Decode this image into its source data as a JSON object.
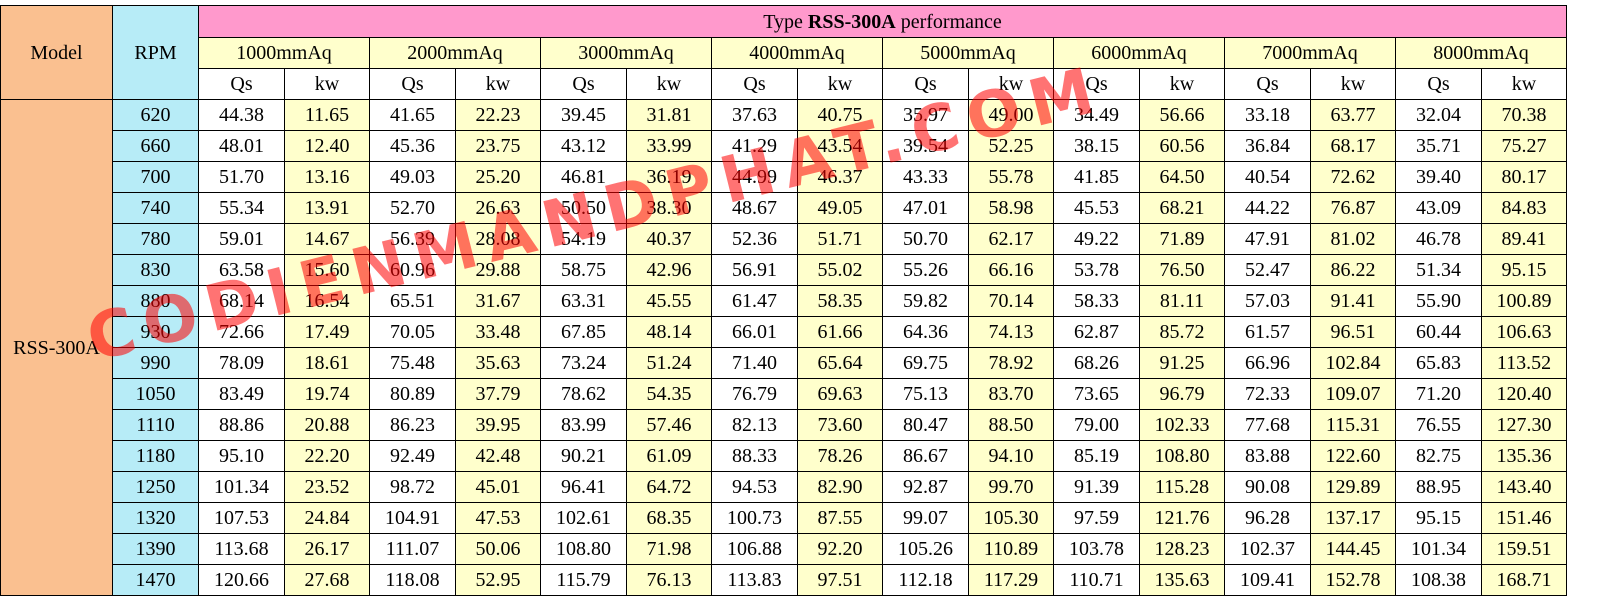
{
  "table": {
    "title_prefix": "Type ",
    "title_bold": "RSS-300A",
    "title_suffix": " performance",
    "model_header": "Model",
    "rpm_header": "RPM",
    "model_value": "RSS-300A",
    "pressures": [
      "1000mmAq",
      "2000mmAq",
      "3000mmAq",
      "4000mmAq",
      "5000mmAq",
      "6000mmAq",
      "7000mmAq",
      "8000mmAq"
    ],
    "sub_headers": [
      "Qs",
      "kw"
    ],
    "rows": [
      {
        "rpm": "620",
        "cells": [
          "44.38",
          "11.65",
          "41.65",
          "22.23",
          "39.45",
          "31.81",
          "37.63",
          "40.75",
          "35.97",
          "49.00",
          "34.49",
          "56.66",
          "33.18",
          "63.77",
          "32.04",
          "70.38"
        ]
      },
      {
        "rpm": "660",
        "cells": [
          "48.01",
          "12.40",
          "45.36",
          "23.75",
          "43.12",
          "33.99",
          "41.29",
          "43.54",
          "39.54",
          "52.25",
          "38.15",
          "60.56",
          "36.84",
          "68.17",
          "35.71",
          "75.27"
        ]
      },
      {
        "rpm": "700",
        "cells": [
          "51.70",
          "13.16",
          "49.03",
          "25.20",
          "46.81",
          "36.19",
          "44.99",
          "46.37",
          "43.33",
          "55.78",
          "41.85",
          "64.50",
          "40.54",
          "72.62",
          "39.40",
          "80.17"
        ]
      },
      {
        "rpm": "740",
        "cells": [
          "55.34",
          "13.91",
          "52.70",
          "26.63",
          "50.50",
          "38.30",
          "48.67",
          "49.05",
          "47.01",
          "58.98",
          "45.53",
          "68.21",
          "44.22",
          "76.87",
          "43.09",
          "84.83"
        ]
      },
      {
        "rpm": "780",
        "cells": [
          "59.01",
          "14.67",
          "56.39",
          "28.08",
          "54.19",
          "40.37",
          "52.36",
          "51.71",
          "50.70",
          "62.17",
          "49.22",
          "71.89",
          "47.91",
          "81.02",
          "46.78",
          "89.41"
        ]
      },
      {
        "rpm": "830",
        "cells": [
          "63.58",
          "15.60",
          "60.96",
          "29.88",
          "58.75",
          "42.96",
          "56.91",
          "55.02",
          "55.26",
          "66.16",
          "53.78",
          "76.50",
          "52.47",
          "86.22",
          "51.34",
          "95.15"
        ]
      },
      {
        "rpm": "880",
        "cells": [
          "68.14",
          "16.54",
          "65.51",
          "31.67",
          "63.31",
          "45.55",
          "61.47",
          "58.35",
          "59.82",
          "70.14",
          "58.33",
          "81.11",
          "57.03",
          "91.41",
          "55.90",
          "100.89"
        ]
      },
      {
        "rpm": "930",
        "cells": [
          "72.66",
          "17.49",
          "70.05",
          "33.48",
          "67.85",
          "48.14",
          "66.01",
          "61.66",
          "64.36",
          "74.13",
          "62.87",
          "85.72",
          "61.57",
          "96.51",
          "60.44",
          "106.63"
        ]
      },
      {
        "rpm": "990",
        "cells": [
          "78.09",
          "18.61",
          "75.48",
          "35.63",
          "73.24",
          "51.24",
          "71.40",
          "65.64",
          "69.75",
          "78.92",
          "68.26",
          "91.25",
          "66.96",
          "102.84",
          "65.83",
          "113.52"
        ]
      },
      {
        "rpm": "1050",
        "cells": [
          "83.49",
          "19.74",
          "80.89",
          "37.79",
          "78.62",
          "54.35",
          "76.79",
          "69.63",
          "75.13",
          "83.70",
          "73.65",
          "96.79",
          "72.33",
          "109.07",
          "71.20",
          "120.40"
        ]
      },
      {
        "rpm": "1110",
        "cells": [
          "88.86",
          "20.88",
          "86.23",
          "39.95",
          "83.99",
          "57.46",
          "82.13",
          "73.60",
          "80.47",
          "88.50",
          "79.00",
          "102.33",
          "77.68",
          "115.31",
          "76.55",
          "127.30"
        ]
      },
      {
        "rpm": "1180",
        "cells": [
          "95.10",
          "22.20",
          "92.49",
          "42.48",
          "90.21",
          "61.09",
          "88.33",
          "78.26",
          "86.67",
          "94.10",
          "85.19",
          "108.80",
          "83.88",
          "122.60",
          "82.75",
          "135.36"
        ]
      },
      {
        "rpm": "1250",
        "cells": [
          "101.34",
          "23.52",
          "98.72",
          "45.01",
          "96.41",
          "64.72",
          "94.53",
          "82.90",
          "92.87",
          "99.70",
          "91.39",
          "115.28",
          "90.08",
          "129.89",
          "88.95",
          "143.40"
        ]
      },
      {
        "rpm": "1320",
        "cells": [
          "107.53",
          "24.84",
          "104.91",
          "47.53",
          "102.61",
          "68.35",
          "100.73",
          "87.55",
          "99.07",
          "105.30",
          "97.59",
          "121.76",
          "96.28",
          "137.17",
          "95.15",
          "151.46"
        ]
      },
      {
        "rpm": "1390",
        "cells": [
          "113.68",
          "26.17",
          "111.07",
          "50.06",
          "108.80",
          "71.98",
          "106.88",
          "92.20",
          "105.26",
          "110.89",
          "103.78",
          "128.23",
          "102.37",
          "144.45",
          "101.34",
          "159.51"
        ]
      },
      {
        "rpm": "1470",
        "cells": [
          "120.66",
          "27.68",
          "118.08",
          "52.95",
          "115.79",
          "76.13",
          "113.83",
          "97.51",
          "112.18",
          "117.29",
          "110.71",
          "135.63",
          "109.41",
          "152.78",
          "108.38",
          "168.71"
        ]
      }
    ]
  },
  "watermark": "CODIENMANDPHAT.COM",
  "colors": {
    "title_bg": "#ff99cc",
    "model_bg": "#fac090",
    "rpm_bg": "#b7ecf7",
    "kw_bg": "#ffffcc",
    "watermark": "#ff0000"
  }
}
